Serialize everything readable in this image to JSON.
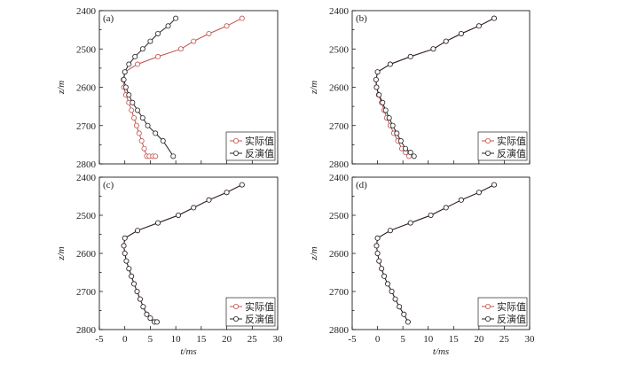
{
  "chart_data": [
    {
      "type": "line",
      "panel_label": "(a)",
      "xlabel": "t/ms",
      "ylabel": "z/m",
      "xlim": [
        -5,
        30
      ],
      "ylim": [
        2800,
        2400
      ],
      "xticks": [],
      "yticks": [
        2400,
        2500,
        2600,
        2700,
        2800
      ],
      "y_inverted": true,
      "legend_position": "bottom-right",
      "series": [
        {
          "name": "实际值",
          "color": "#c0504d",
          "x": [
            23,
            20,
            16.5,
            13.5,
            11,
            6.5,
            2.5,
            0,
            -0.3,
            -0.2,
            0.2,
            0.8,
            1.3,
            1.8,
            2.3,
            2.8,
            3.3,
            3.8,
            4.3,
            4.8,
            5.5,
            6
          ],
          "y": [
            2420,
            2440,
            2460,
            2480,
            2500,
            2520,
            2540,
            2560,
            2580,
            2600,
            2620,
            2640,
            2660,
            2680,
            2700,
            2720,
            2740,
            2760,
            2780,
            2780,
            2780,
            2780
          ]
        },
        {
          "name": "反演值",
          "color": "#222222",
          "x": [
            10,
            8.5,
            6.5,
            5,
            3.5,
            2,
            0.8,
            0,
            -0.2,
            0.2,
            0.8,
            1.5,
            2.5,
            3.5,
            4.5,
            6,
            7.5,
            9.5
          ],
          "y": [
            2420,
            2440,
            2460,
            2480,
            2500,
            2520,
            2540,
            2560,
            2580,
            2600,
            2620,
            2640,
            2660,
            2680,
            2700,
            2720,
            2740,
            2780
          ]
        }
      ]
    },
    {
      "type": "line",
      "panel_label": "(b)",
      "xlabel": "t/ms",
      "ylabel": "z/m",
      "xlim": [
        -5,
        30
      ],
      "ylim": [
        2800,
        2400
      ],
      "xticks": [],
      "yticks": [
        2400,
        2500,
        2600,
        2700,
        2800
      ],
      "y_inverted": true,
      "legend_position": "bottom-right",
      "series": [
        {
          "name": "实际值",
          "color": "#c0504d",
          "x": [
            23,
            20,
            16.5,
            13.5,
            11,
            6.5,
            2.5,
            0,
            -0.3,
            -0.2,
            0.2,
            0.8,
            1.3,
            1.8,
            2.5,
            3.2,
            4,
            4.8,
            5.5,
            6.2
          ],
          "y": [
            2420,
            2440,
            2460,
            2480,
            2500,
            2520,
            2540,
            2560,
            2580,
            2600,
            2620,
            2640,
            2660,
            2680,
            2700,
            2720,
            2740,
            2760,
            2770,
            2780
          ]
        },
        {
          "name": "反演值",
          "color": "#222222",
          "x": [
            23,
            20,
            16.5,
            13.5,
            11,
            6.5,
            2.5,
            0,
            -0.3,
            -0.2,
            0.3,
            1,
            1.6,
            2.3,
            3,
            3.8,
            4.6,
            5.5,
            6.5,
            7.2
          ],
          "y": [
            2420,
            2440,
            2460,
            2480,
            2500,
            2520,
            2540,
            2560,
            2580,
            2600,
            2620,
            2640,
            2660,
            2680,
            2700,
            2720,
            2740,
            2760,
            2770,
            2780
          ]
        }
      ]
    },
    {
      "type": "line",
      "panel_label": "(c)",
      "xlabel": "t/ms",
      "ylabel": "z/m",
      "xlim": [
        -5,
        30
      ],
      "ylim": [
        2800,
        2400
      ],
      "xticks": [
        -5,
        0,
        5,
        10,
        15,
        20,
        25,
        30
      ],
      "yticks": [
        2400,
        2500,
        2600,
        2700,
        2800
      ],
      "y_inverted": true,
      "legend_position": "bottom-right",
      "series": [
        {
          "name": "实际值",
          "color": "#c0504d",
          "x": [
            23,
            20,
            16.5,
            13.5,
            10.5,
            6.5,
            2.5,
            0,
            -0.2,
            0,
            0.3,
            0.8,
            1.3,
            1.8,
            2.4,
            3,
            3.6,
            4.3,
            5,
            5.8,
            6.3
          ],
          "y": [
            2420,
            2440,
            2460,
            2480,
            2500,
            2520,
            2540,
            2560,
            2580,
            2600,
            2620,
            2640,
            2660,
            2680,
            2700,
            2720,
            2740,
            2760,
            2770,
            2780,
            2780
          ]
        },
        {
          "name": "反演值",
          "color": "#222222",
          "x": [
            23,
            20,
            16.5,
            13.5,
            10.5,
            6.5,
            2.5,
            0,
            -0.2,
            0,
            0.3,
            0.8,
            1.3,
            1.8,
            2.4,
            3,
            3.6,
            4.3,
            5,
            5.8,
            6.3
          ],
          "y": [
            2420,
            2440,
            2460,
            2480,
            2500,
            2520,
            2540,
            2560,
            2580,
            2600,
            2620,
            2640,
            2660,
            2680,
            2700,
            2720,
            2740,
            2760,
            2770,
            2780,
            2780
          ]
        }
      ]
    },
    {
      "type": "line",
      "panel_label": "(d)",
      "xlabel": "t/ms",
      "ylabel": "z/m",
      "xlim": [
        -5,
        30
      ],
      "ylim": [
        2800,
        2400
      ],
      "xticks": [
        -5,
        0,
        5,
        10,
        15,
        20,
        25,
        30
      ],
      "yticks": [
        2400,
        2500,
        2600,
        2700,
        2800
      ],
      "y_inverted": true,
      "legend_position": "bottom-right",
      "series": [
        {
          "name": "实际值",
          "color": "#c0504d",
          "x": [
            23,
            20,
            16.5,
            13.5,
            10.5,
            6.5,
            2.5,
            0,
            -0.2,
            0,
            0.3,
            0.8,
            1.3,
            2,
            2.8,
            3.5,
            4.3,
            5.2,
            6
          ],
          "y": [
            2420,
            2440,
            2460,
            2480,
            2500,
            2520,
            2540,
            2560,
            2580,
            2600,
            2620,
            2640,
            2660,
            2680,
            2700,
            2720,
            2740,
            2760,
            2780
          ]
        },
        {
          "name": "反演值",
          "color": "#222222",
          "x": [
            23,
            20,
            16.5,
            13.5,
            10.5,
            6.5,
            2.5,
            0,
            -0.2,
            0,
            0.3,
            0.8,
            1.3,
            2,
            2.8,
            3.5,
            4.3,
            5.2,
            6
          ],
          "y": [
            2420,
            2440,
            2460,
            2480,
            2500,
            2520,
            2540,
            2560,
            2580,
            2600,
            2620,
            2640,
            2660,
            2680,
            2700,
            2720,
            2740,
            2760,
            2780
          ]
        }
      ]
    }
  ]
}
